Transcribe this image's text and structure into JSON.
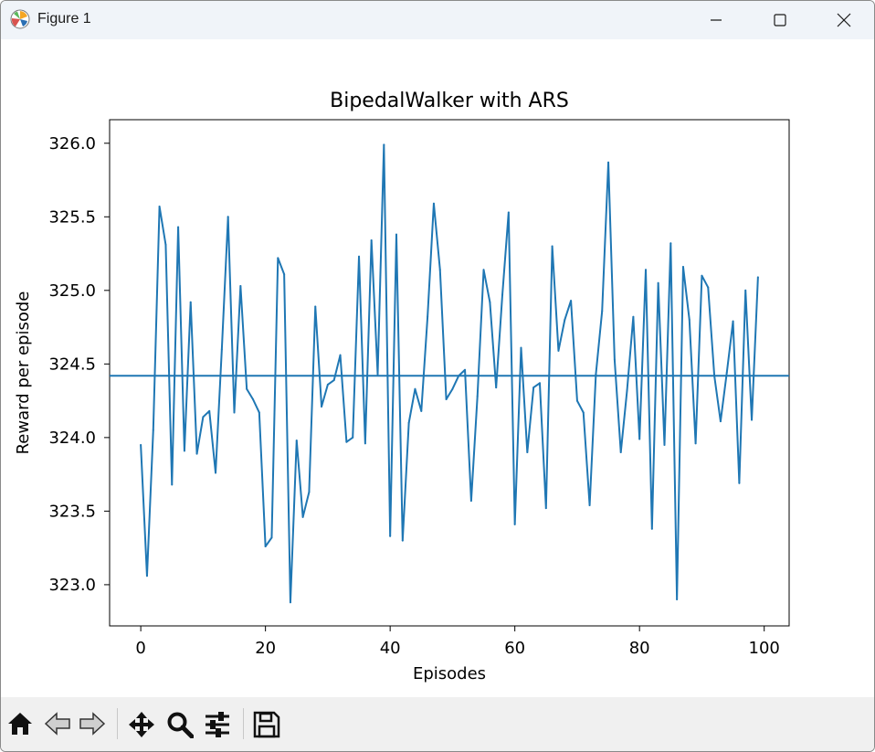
{
  "window": {
    "title": "Figure 1",
    "icons": {
      "app": "matplotlib-icon",
      "minimize": "minimize-icon",
      "maximize": "maximize-icon",
      "close": "close-icon"
    }
  },
  "toolbar": {
    "buttons": [
      {
        "name": "home-button",
        "icon": "home-icon"
      },
      {
        "name": "back-button",
        "icon": "arrow-left-icon"
      },
      {
        "name": "forward-button",
        "icon": "arrow-right-icon"
      },
      {
        "name": "pan-button",
        "icon": "move-arrows-icon"
      },
      {
        "name": "zoom-button",
        "icon": "magnifier-icon"
      },
      {
        "name": "configure-subplots-button",
        "icon": "sliders-icon"
      },
      {
        "name": "save-button",
        "icon": "floppy-disk-icon"
      }
    ]
  },
  "chart_data": {
    "type": "line",
    "title": "BipedalWalker with ARS",
    "xlabel": "Episodes",
    "ylabel": "Reward per episode",
    "xlim": [
      -5,
      104
    ],
    "ylim": [
      322.72,
      326.16
    ],
    "xticks": [
      0,
      20,
      40,
      60,
      80,
      100
    ],
    "yticks": [
      323.0,
      323.5,
      324.0,
      324.5,
      325.0,
      325.5,
      326.0
    ],
    "ytick_labels": [
      "323.0",
      "323.5",
      "324.0",
      "324.5",
      "325.0",
      "325.5",
      "326.0"
    ],
    "grid": false,
    "line_color": "#1f77b4",
    "horizontal_line": {
      "y": 324.42,
      "color": "#1f77b4"
    },
    "series": [
      {
        "x": [
          0,
          1,
          2,
          3,
          4,
          5,
          6,
          7,
          8,
          9,
          10,
          11,
          12,
          13,
          14,
          15,
          16,
          17,
          18,
          19,
          20,
          21,
          22,
          23,
          24,
          25,
          26,
          27,
          28,
          29,
          30,
          31,
          32,
          33,
          34,
          35,
          36,
          37,
          38,
          39,
          40,
          41,
          42,
          43,
          44,
          45,
          46,
          47,
          48,
          49,
          50,
          51,
          52,
          53,
          54,
          55,
          56,
          57,
          58,
          59,
          60,
          61,
          62,
          63,
          64,
          65,
          66,
          67,
          68,
          69,
          70,
          71,
          72,
          73,
          74,
          75,
          76,
          77,
          78,
          79,
          80,
          81,
          82,
          83,
          84,
          85,
          86,
          87,
          88,
          89,
          90,
          91,
          92,
          93,
          94,
          95,
          96,
          97,
          98,
          99
        ],
        "y": [
          323.95,
          323.06,
          324.05,
          325.57,
          325.31,
          323.68,
          325.43,
          323.91,
          324.92,
          323.89,
          324.14,
          324.18,
          323.76,
          324.6,
          325.5,
          324.17,
          325.03,
          324.33,
          324.26,
          324.17,
          323.26,
          323.32,
          325.22,
          325.11,
          322.88,
          323.98,
          323.46,
          323.63,
          324.89,
          324.21,
          324.36,
          324.39,
          324.56,
          323.97,
          324.0,
          325.23,
          323.96,
          325.34,
          324.43,
          325.99,
          323.33,
          325.38,
          323.3,
          324.1,
          324.33,
          324.18,
          324.82,
          325.59,
          325.14,
          324.26,
          324.33,
          324.42,
          324.46,
          323.57,
          324.28,
          325.14,
          324.92,
          324.34,
          324.97,
          325.53,
          323.41,
          324.61,
          323.9,
          324.34,
          324.37,
          323.52,
          325.3,
          324.59,
          324.8,
          324.93,
          324.25,
          324.17,
          323.54,
          324.43,
          324.86,
          325.87,
          324.53,
          323.9,
          324.32,
          324.82,
          323.99,
          325.14,
          323.38,
          325.05,
          323.95,
          325.32,
          322.9,
          325.16,
          324.8,
          323.96,
          325.1,
          325.02,
          324.42,
          324.11,
          324.44,
          324.79,
          323.69,
          325.0,
          324.12,
          325.09
        ]
      }
    ]
  }
}
